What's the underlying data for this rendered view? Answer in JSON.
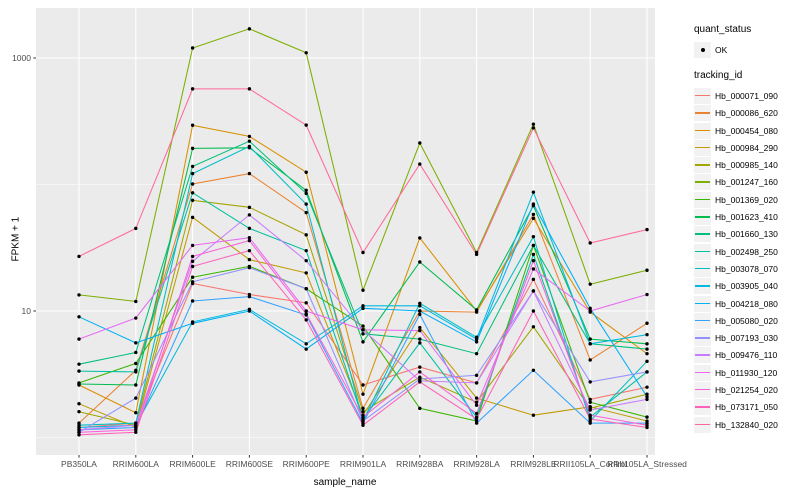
{
  "axes": {
    "y_title": "FPKM + 1",
    "x_title": "sample_name",
    "y_tick_top": "1000",
    "y_tick_bottom": "10"
  },
  "legend": {
    "quant_title": "quant_status",
    "ok_label": "OK",
    "tracking_title": "tracking_id"
  },
  "colors": {
    "panel_bg": "#EBEBEB",
    "grid": "#FFFFFF",
    "axis_text": "#4D4D4D",
    "tick_mark": "#333333",
    "point": "#000000",
    "legend_key_bg": "#F2F2F2"
  },
  "chart_data": {
    "type": "line",
    "title": "",
    "xlabel": "sample_name",
    "ylabel": "FPKM + 1",
    "y_scale": "log10",
    "y_major_ticks": [
      10,
      1000
    ],
    "y_minor_gridlines": [
      1,
      100
    ],
    "ylim": [
      0.7,
      2500
    ],
    "grid": "white major/minor gridlines on gray panel",
    "legend_position": "right",
    "point_shape": "filled black circle (quant_status OK)",
    "categories": [
      "PB350LA",
      "RRIM600LA",
      "RRIM600LE",
      "RRIM600SE",
      "RRIM600PE",
      "RRIM901LA",
      "RRIM928BA",
      "RRIM928LA",
      "RRIM928LE",
      "RRII105LA_Control",
      "RRII105LA_Stressed"
    ],
    "series": [
      {
        "name": "Hb_000071_090",
        "color": "#F8766D",
        "values": [
          1.2,
          1.3,
          16.5,
          13.5,
          11.6,
          2.6,
          3.6,
          2.7,
          17.8,
          2.0,
          2.5
        ]
      },
      {
        "name": "Hb_000086_620",
        "color": "#EA8331",
        "values": [
          1.3,
          3.4,
          101,
          122,
          60,
          1.7,
          10.0,
          9.8,
          58,
          4.1,
          8.0
        ]
      },
      {
        "name": "Hb_000454_080",
        "color": "#D89000",
        "values": [
          2.6,
          1.57,
          294,
          240,
          125,
          2.2,
          37.8,
          10.0,
          54,
          9.8,
          4.6
        ]
      },
      {
        "name": "Hb_000984_290",
        "color": "#C09B00",
        "values": [
          1.85,
          1.2,
          55,
          25.5,
          20,
          1.5,
          7.4,
          2.05,
          1.5,
          1.75,
          1.35
        ]
      },
      {
        "name": "Hb_000985_140",
        "color": "#A3A500",
        "values": [
          1.6,
          1.25,
          75,
          66,
          40,
          1.6,
          3.0,
          1.9,
          7.5,
          1.7,
          2.2
        ]
      },
      {
        "name": "Hb_001247_160",
        "color": "#7CAE00",
        "values": [
          13.4,
          11.9,
          1200,
          1700,
          1100,
          14.6,
          213,
          29,
          300,
          16.3,
          21
        ]
      },
      {
        "name": "Hb_001369_020",
        "color": "#39B600",
        "values": [
          2.7,
          3.85,
          18.5,
          22.5,
          15,
          7.6,
          1.7,
          1.35,
          33,
          1.9,
          1.45
        ]
      },
      {
        "name": "Hb_001623_410",
        "color": "#00BB4E",
        "values": [
          2.65,
          2.6,
          193,
          195,
          90,
          5.7,
          24.4,
          10.2,
          68,
          6.0,
          5.5
        ]
      },
      {
        "name": "Hb_001660_130",
        "color": "#00BF7D",
        "values": [
          3.8,
          4.7,
          139,
          220,
          85,
          6.6,
          6.0,
          4.6,
          33,
          5.5,
          5.0
        ]
      },
      {
        "name": "Hb_002498_250",
        "color": "#00C1A3",
        "values": [
          3.35,
          3.3,
          86,
          45,
          30,
          1.4,
          5.6,
          1.45,
          28,
          1.45,
          3.3
        ]
      },
      {
        "name": "Hb_003078_070",
        "color": "#00BFC4",
        "values": [
          1.25,
          1.3,
          122,
          200,
          70,
          1.35,
          11.5,
          6.2,
          38.7,
          1.35,
          4.0
        ]
      },
      {
        "name": "Hb_003905_040",
        "color": "#00BAE0",
        "values": [
          1.2,
          1.25,
          8.2,
          10.3,
          5.5,
          11.0,
          11.0,
          6.0,
          87,
          5.5,
          6.5
        ]
      },
      {
        "name": "Hb_004218_080",
        "color": "#00B0F6",
        "values": [
          9.0,
          5.6,
          8.0,
          10.0,
          5.0,
          10.5,
          10.0,
          5.7,
          70,
          10.5,
          2.1
        ]
      },
      {
        "name": "Hb_005080_020",
        "color": "#35A2FF",
        "values": [
          1.15,
          1.2,
          12,
          13,
          9.3,
          1.3,
          9.4,
          1.3,
          3.4,
          1.3,
          1.3
        ]
      },
      {
        "name": "Hb_007193_030",
        "color": "#9590FF",
        "values": [
          1.1,
          2.05,
          17,
          22,
          15,
          1.35,
          2.9,
          3.1,
          14.4,
          2.75,
          3.3
        ]
      },
      {
        "name": "Hb_009476_110",
        "color": "#C77CFF",
        "values": [
          1.15,
          1.25,
          24.7,
          57.5,
          25,
          7.1,
          2.8,
          2.7,
          14.4,
          1.65,
          2.0
        ]
      },
      {
        "name": "Hb_011930_120",
        "color": "#E76BF3",
        "values": [
          6.0,
          8.8,
          33,
          38,
          10,
          7.1,
          7.0,
          1.8,
          21.5,
          10.0,
          13.5
        ]
      },
      {
        "name": "Hb_021254_020",
        "color": "#FA62DB",
        "values": [
          1.1,
          1.15,
          27,
          36,
          9.5,
          1.45,
          3.3,
          1.55,
          25,
          1.5,
          1.25
        ]
      },
      {
        "name": "Hb_073171_050",
        "color": "#FF62BC",
        "values": [
          1.05,
          1.1,
          22.5,
          30,
          8.5,
          1.25,
          2.75,
          1.4,
          10,
          1.4,
          1.2
        ]
      },
      {
        "name": "Hb_132840_020",
        "color": "#FF6A98",
        "values": [
          27,
          45,
          570,
          570,
          295,
          29,
          145,
          28,
          280,
          34.5,
          44
        ]
      }
    ]
  }
}
